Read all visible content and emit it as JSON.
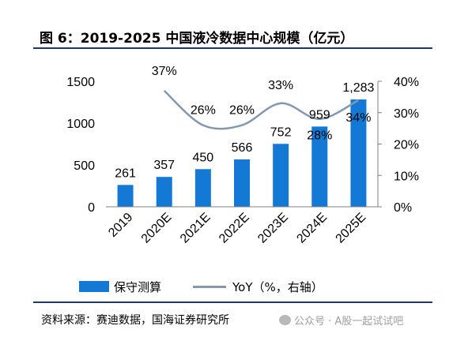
{
  "figure": {
    "title": "图 6：2019-2025 中国液冷数据中心规模（亿元）",
    "source": "资料来源：赛迪数据，国海证券研究所",
    "watermark": "公众号 · A股一起试试吧"
  },
  "colors": {
    "bar": "#1479d4",
    "line": "#8497b0",
    "rule": "#1f3864"
  },
  "legend": {
    "bar_label": "保守测算",
    "line_label": "YoY（%，右轴）"
  },
  "chart_data": {
    "type": "bar",
    "categories": [
      "2019",
      "2020E",
      "2021E",
      "2022E",
      "2023E",
      "2024E",
      "2025E"
    ],
    "series": [
      {
        "name": "保守测算",
        "type": "bar",
        "axis": "left",
        "values": [
          261,
          357,
          450,
          566,
          752,
          959,
          1283
        ],
        "labels": [
          "261",
          "357",
          "450",
          "566",
          "752",
          "959",
          "1,283"
        ]
      },
      {
        "name": "YoY（%，右轴）",
        "type": "line",
        "axis": "right",
        "smooth": true,
        "values": [
          null,
          37,
          26,
          26,
          33,
          28,
          34
        ],
        "labels": [
          "",
          "37%",
          "26%",
          "26%",
          "33%",
          "28%",
          "34%"
        ]
      }
    ],
    "y_left": {
      "min": 0,
      "max": 1500,
      "ticks": [
        "0",
        "500",
        "1000",
        "1500"
      ],
      "tick_values": [
        0,
        500,
        1000,
        1500
      ]
    },
    "y_right": {
      "min": 0,
      "max": 40,
      "ticks": [
        "0%",
        "10%",
        "20%",
        "30%",
        "40%"
      ],
      "tick_values": [
        0,
        10,
        20,
        30,
        40
      ]
    },
    "grid": false,
    "legend_position": "bottom"
  }
}
